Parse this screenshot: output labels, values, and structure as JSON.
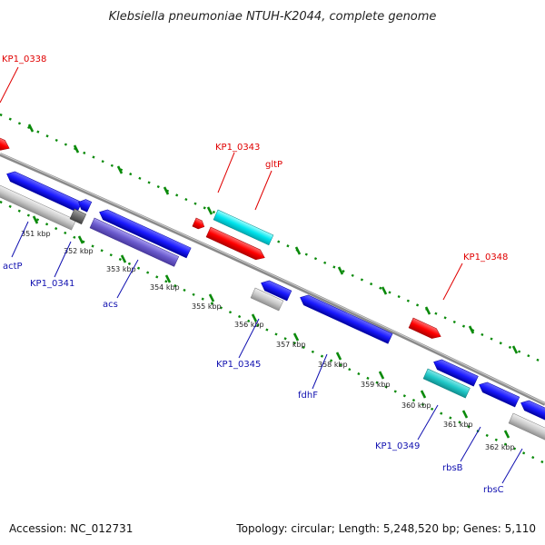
{
  "title": "Klebsiella pneumoniae NTUH-K2044, complete genome",
  "accession": "Accession: NC_012731",
  "topology": "Topology: circular; Length: 5,248,520 bp; Genes: 5,110",
  "kbp_labels": [
    "351 kbp",
    "352 kbp",
    "353 kbp",
    "354 kbp",
    "355 kbp",
    "356 kbp",
    "357 kbp",
    "358 kbp",
    "359 kbp",
    "360 kbp",
    "361 kbp",
    "362 kbp"
  ],
  "gene_labels": {
    "kp1_0338": "KP1_0338",
    "kp1_0343": "KP1_0343",
    "gltP": "gltP",
    "kp1_0348": "KP1_0348",
    "actP": "actP",
    "kp1_0341": "KP1_0341",
    "acs": "acs",
    "kp1_0345": "KP1_0345",
    "fdhF": "fdhF",
    "kp1_0349": "KP1_0349",
    "rbsB": "rbsB",
    "rbsC": "rbsC"
  },
  "colors": {
    "red": "#ff0000",
    "blue": "#1a1aff",
    "cyan": "#00e5ee",
    "teal": "#20c8c8",
    "violet": "#6a5acd",
    "gray": "#c8c8c8",
    "darkgray": "#6e6e6e",
    "green": "#0a8a0a",
    "backbone": "#888888"
  }
}
